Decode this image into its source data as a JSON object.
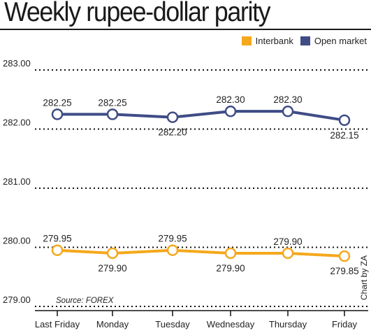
{
  "title": "Weekly rupee-dollar parity",
  "source": "Source: FOREX",
  "credit": "Chart by ZA",
  "colors": {
    "interbank": "#f5a81c",
    "open_market": "#3f4c86",
    "gridline": "#111111",
    "axis": "#111111"
  },
  "chart_data": {
    "type": "line",
    "title": "Weekly rupee-dollar parity",
    "categories": [
      "Last Friday",
      "Monday",
      "Tuesday",
      "Wednesday",
      "Thursday",
      "Friday"
    ],
    "series": [
      {
        "name": "Interbank",
        "color": "#f5a81c",
        "values": [
          279.95,
          279.9,
          279.95,
          279.9,
          279.9,
          279.85
        ],
        "labels": [
          "279.95",
          "279.90",
          "279.95",
          "279.90",
          "279.90",
          "279.85"
        ],
        "label_positions": [
          "above",
          "below",
          "above",
          "below",
          "above",
          "below"
        ]
      },
      {
        "name": "Open market",
        "color": "#3f4c86",
        "values": [
          282.25,
          282.25,
          282.2,
          282.3,
          282.3,
          282.15
        ],
        "labels": [
          "282.25",
          "282.25",
          "282.20",
          "282.30",
          "282.30",
          "282.15"
        ],
        "label_positions": [
          "above",
          "above",
          "below",
          "above",
          "above",
          "below"
        ]
      }
    ],
    "y_ticks": [
      "279.00",
      "280.00",
      "281.00",
      "282.00",
      "283.00"
    ],
    "ylim": [
      279,
      283
    ],
    "grid": "dotted horizontal",
    "legend": "top-right"
  }
}
